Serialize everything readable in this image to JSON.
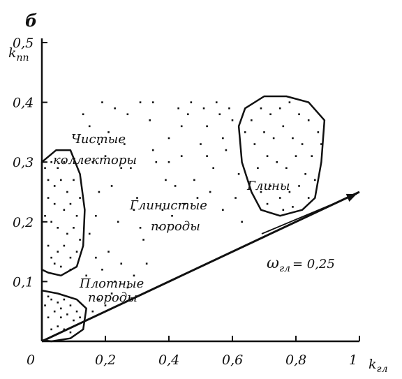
{
  "chart_data": {
    "type": "scatter",
    "panel_label": "б",
    "xlabel": "k",
    "xlabel_sub": "гл",
    "ylabel": "k",
    "ylabel_sub": "пп",
    "xlim": [
      0,
      1
    ],
    "ylim": [
      0,
      0.5
    ],
    "x_ticks": [
      {
        "value": 0,
        "label": "0"
      },
      {
        "value": 0.2,
        "label": "0,2"
      },
      {
        "value": 0.4,
        "label": "0,4"
      },
      {
        "value": 0.6,
        "label": "0,6"
      },
      {
        "value": 0.8,
        "label": "0,8"
      },
      {
        "value": 1,
        "label": "1"
      }
    ],
    "y_ticks": [
      {
        "value": 0.1,
        "label": "0,1"
      },
      {
        "value": 0.2,
        "label": "0,2"
      },
      {
        "value": 0.3,
        "label": "0,3"
      },
      {
        "value": 0.4,
        "label": "0,4"
      },
      {
        "value": 0.5,
        "label": "0,5"
      }
    ],
    "line": {
      "x": [
        0,
        1
      ],
      "y": [
        0,
        0.25
      ],
      "label": "ω",
      "label_sub": "гл",
      "label_value": "= 0,25"
    },
    "regions": [
      {
        "name": "Чистые коллекторы",
        "lines": [
          "Чистые",
          "коллекторы"
        ],
        "outline": true,
        "points": [
          [
            0,
            0.3
          ],
          [
            0.045,
            0.32
          ],
          [
            0.09,
            0.32
          ],
          [
            0.12,
            0.28
          ],
          [
            0.135,
            0.22
          ],
          [
            0.13,
            0.16
          ],
          [
            0.11,
            0.125
          ],
          [
            0.06,
            0.11
          ],
          [
            0.02,
            0.115
          ],
          [
            0,
            0.12
          ]
        ]
      },
      {
        "name": "Глины",
        "lines": [
          "Глины"
        ],
        "outline": true,
        "points": [
          [
            0.64,
            0.39
          ],
          [
            0.7,
            0.41
          ],
          [
            0.77,
            0.41
          ],
          [
            0.84,
            0.4
          ],
          [
            0.89,
            0.37
          ],
          [
            0.88,
            0.3
          ],
          [
            0.86,
            0.24
          ],
          [
            0.82,
            0.22
          ],
          [
            0.75,
            0.21
          ],
          [
            0.69,
            0.22
          ],
          [
            0.66,
            0.25
          ],
          [
            0.63,
            0.3
          ],
          [
            0.62,
            0.36
          ]
        ]
      },
      {
        "name": "Плотные породы",
        "lines": [
          "Плотные",
          "породы"
        ],
        "outline": true,
        "points": [
          [
            0,
            0.085
          ],
          [
            0.05,
            0.08
          ],
          [
            0.11,
            0.07
          ],
          [
            0.14,
            0.055
          ],
          [
            0.13,
            0.02
          ],
          [
            0.09,
            0.005
          ],
          [
            0.03,
            0
          ],
          [
            0,
            0.002
          ]
        ]
      },
      {
        "name": "Глинистые породы",
        "lines": [
          "Глинистые",
          "породы"
        ],
        "outline": false,
        "points": []
      }
    ],
    "points": [
      [
        0.01,
        0.29
      ],
      [
        0.02,
        0.27
      ],
      [
        0.03,
        0.3
      ],
      [
        0.05,
        0.29
      ],
      [
        0.07,
        0.3
      ],
      [
        0.04,
        0.26
      ],
      [
        0.06,
        0.27
      ],
      [
        0.08,
        0.25
      ],
      [
        0.1,
        0.27
      ],
      [
        0.02,
        0.24
      ],
      [
        0.04,
        0.23
      ],
      [
        0.07,
        0.22
      ],
      [
        0.09,
        0.23
      ],
      [
        0.11,
        0.21
      ],
      [
        0.03,
        0.2
      ],
      [
        0.05,
        0.19
      ],
      [
        0.08,
        0.18
      ],
      [
        0.1,
        0.19
      ],
      [
        0.12,
        0.17
      ],
      [
        0.02,
        0.16
      ],
      [
        0.05,
        0.15
      ],
      [
        0.07,
        0.16
      ],
      [
        0.09,
        0.14
      ],
      [
        0.11,
        0.15
      ],
      [
        0.04,
        0.13
      ],
      [
        0.06,
        0.125
      ],
      [
        0.09,
        0.12
      ],
      [
        0.03,
        0.14
      ],
      [
        0.12,
        0.24
      ],
      [
        0.01,
        0.21
      ],
      [
        0.01,
        0.06
      ],
      [
        0.03,
        0.07
      ],
      [
        0.05,
        0.065
      ],
      [
        0.07,
        0.07
      ],
      [
        0.09,
        0.06
      ],
      [
        0.11,
        0.05
      ],
      [
        0.02,
        0.04
      ],
      [
        0.04,
        0.05
      ],
      [
        0.06,
        0.04
      ],
      [
        0.08,
        0.045
      ],
      [
        0.1,
        0.035
      ],
      [
        0.12,
        0.04
      ],
      [
        0.03,
        0.02
      ],
      [
        0.05,
        0.025
      ],
      [
        0.07,
        0.02
      ],
      [
        0.09,
        0.015
      ],
      [
        0.02,
        0.075
      ],
      [
        0.06,
        0.055
      ],
      [
        0.66,
        0.37
      ],
      [
        0.69,
        0.39
      ],
      [
        0.72,
        0.38
      ],
      [
        0.75,
        0.39
      ],
      [
        0.78,
        0.4
      ],
      [
        0.81,
        0.38
      ],
      [
        0.84,
        0.37
      ],
      [
        0.87,
        0.35
      ],
      [
        0.67,
        0.33
      ],
      [
        0.7,
        0.35
      ],
      [
        0.73,
        0.34
      ],
      [
        0.76,
        0.36
      ],
      [
        0.79,
        0.34
      ],
      [
        0.82,
        0.33
      ],
      [
        0.85,
        0.31
      ],
      [
        0.68,
        0.29
      ],
      [
        0.71,
        0.31
      ],
      [
        0.74,
        0.3
      ],
      [
        0.77,
        0.29
      ],
      [
        0.8,
        0.31
      ],
      [
        0.83,
        0.28
      ],
      [
        0.86,
        0.27
      ],
      [
        0.69,
        0.25
      ],
      [
        0.72,
        0.26
      ],
      [
        0.75,
        0.24
      ],
      [
        0.78,
        0.25
      ],
      [
        0.81,
        0.26
      ],
      [
        0.84,
        0.24
      ],
      [
        0.71,
        0.23
      ],
      [
        0.76,
        0.22
      ],
      [
        0.79,
        0.225
      ],
      [
        0.64,
        0.35
      ],
      [
        0.88,
        0.33
      ],
      [
        0.16,
        0.3
      ],
      [
        0.17,
        0.21
      ],
      [
        0.18,
        0.25
      ],
      [
        0.2,
        0.31
      ],
      [
        0.22,
        0.26
      ],
      [
        0.24,
        0.2
      ],
      [
        0.26,
        0.33
      ],
      [
        0.28,
        0.29
      ],
      [
        0.3,
        0.24
      ],
      [
        0.32,
        0.17
      ],
      [
        0.34,
        0.37
      ],
      [
        0.36,
        0.3
      ],
      [
        0.38,
        0.22
      ],
      [
        0.4,
        0.34
      ],
      [
        0.42,
        0.26
      ],
      [
        0.44,
        0.31
      ],
      [
        0.46,
        0.38
      ],
      [
        0.48,
        0.27
      ],
      [
        0.5,
        0.33
      ],
      [
        0.52,
        0.36
      ],
      [
        0.54,
        0.29
      ],
      [
        0.56,
        0.38
      ],
      [
        0.58,
        0.32
      ],
      [
        0.6,
        0.37
      ],
      [
        0.62,
        0.28
      ],
      [
        0.19,
        0.4
      ],
      [
        0.23,
        0.39
      ],
      [
        0.27,
        0.38
      ],
      [
        0.31,
        0.4
      ],
      [
        0.35,
        0.4
      ],
      [
        0.43,
        0.39
      ],
      [
        0.47,
        0.4
      ],
      [
        0.51,
        0.39
      ],
      [
        0.55,
        0.4
      ],
      [
        0.59,
        0.39
      ],
      [
        0.21,
        0.35
      ],
      [
        0.25,
        0.29
      ],
      [
        0.29,
        0.22
      ],
      [
        0.33,
        0.13
      ],
      [
        0.37,
        0.19
      ],
      [
        0.41,
        0.21
      ],
      [
        0.45,
        0.23
      ],
      [
        0.49,
        0.24
      ],
      [
        0.53,
        0.25
      ],
      [
        0.57,
        0.22
      ],
      [
        0.61,
        0.24
      ],
      [
        0.63,
        0.2
      ],
      [
        0.15,
        0.18
      ],
      [
        0.17,
        0.14
      ],
      [
        0.19,
        0.12
      ],
      [
        0.21,
        0.15
      ],
      [
        0.23,
        0.1
      ],
      [
        0.25,
        0.13
      ],
      [
        0.27,
        0.09
      ],
      [
        0.29,
        0.11
      ],
      [
        0.18,
        0.07
      ],
      [
        0.2,
        0.06
      ],
      [
        0.22,
        0.08
      ],
      [
        0.16,
        0.05
      ],
      [
        0.14,
        0.11
      ],
      [
        0.31,
        0.19
      ],
      [
        0.39,
        0.27
      ],
      [
        0.35,
        0.32
      ],
      [
        0.15,
        0.36
      ],
      [
        0.13,
        0.38
      ],
      [
        0.18,
        0.33
      ],
      [
        0.57,
        0.34
      ],
      [
        0.44,
        0.36
      ],
      [
        0.4,
        0.3
      ],
      [
        0.52,
        0.31
      ]
    ]
  }
}
